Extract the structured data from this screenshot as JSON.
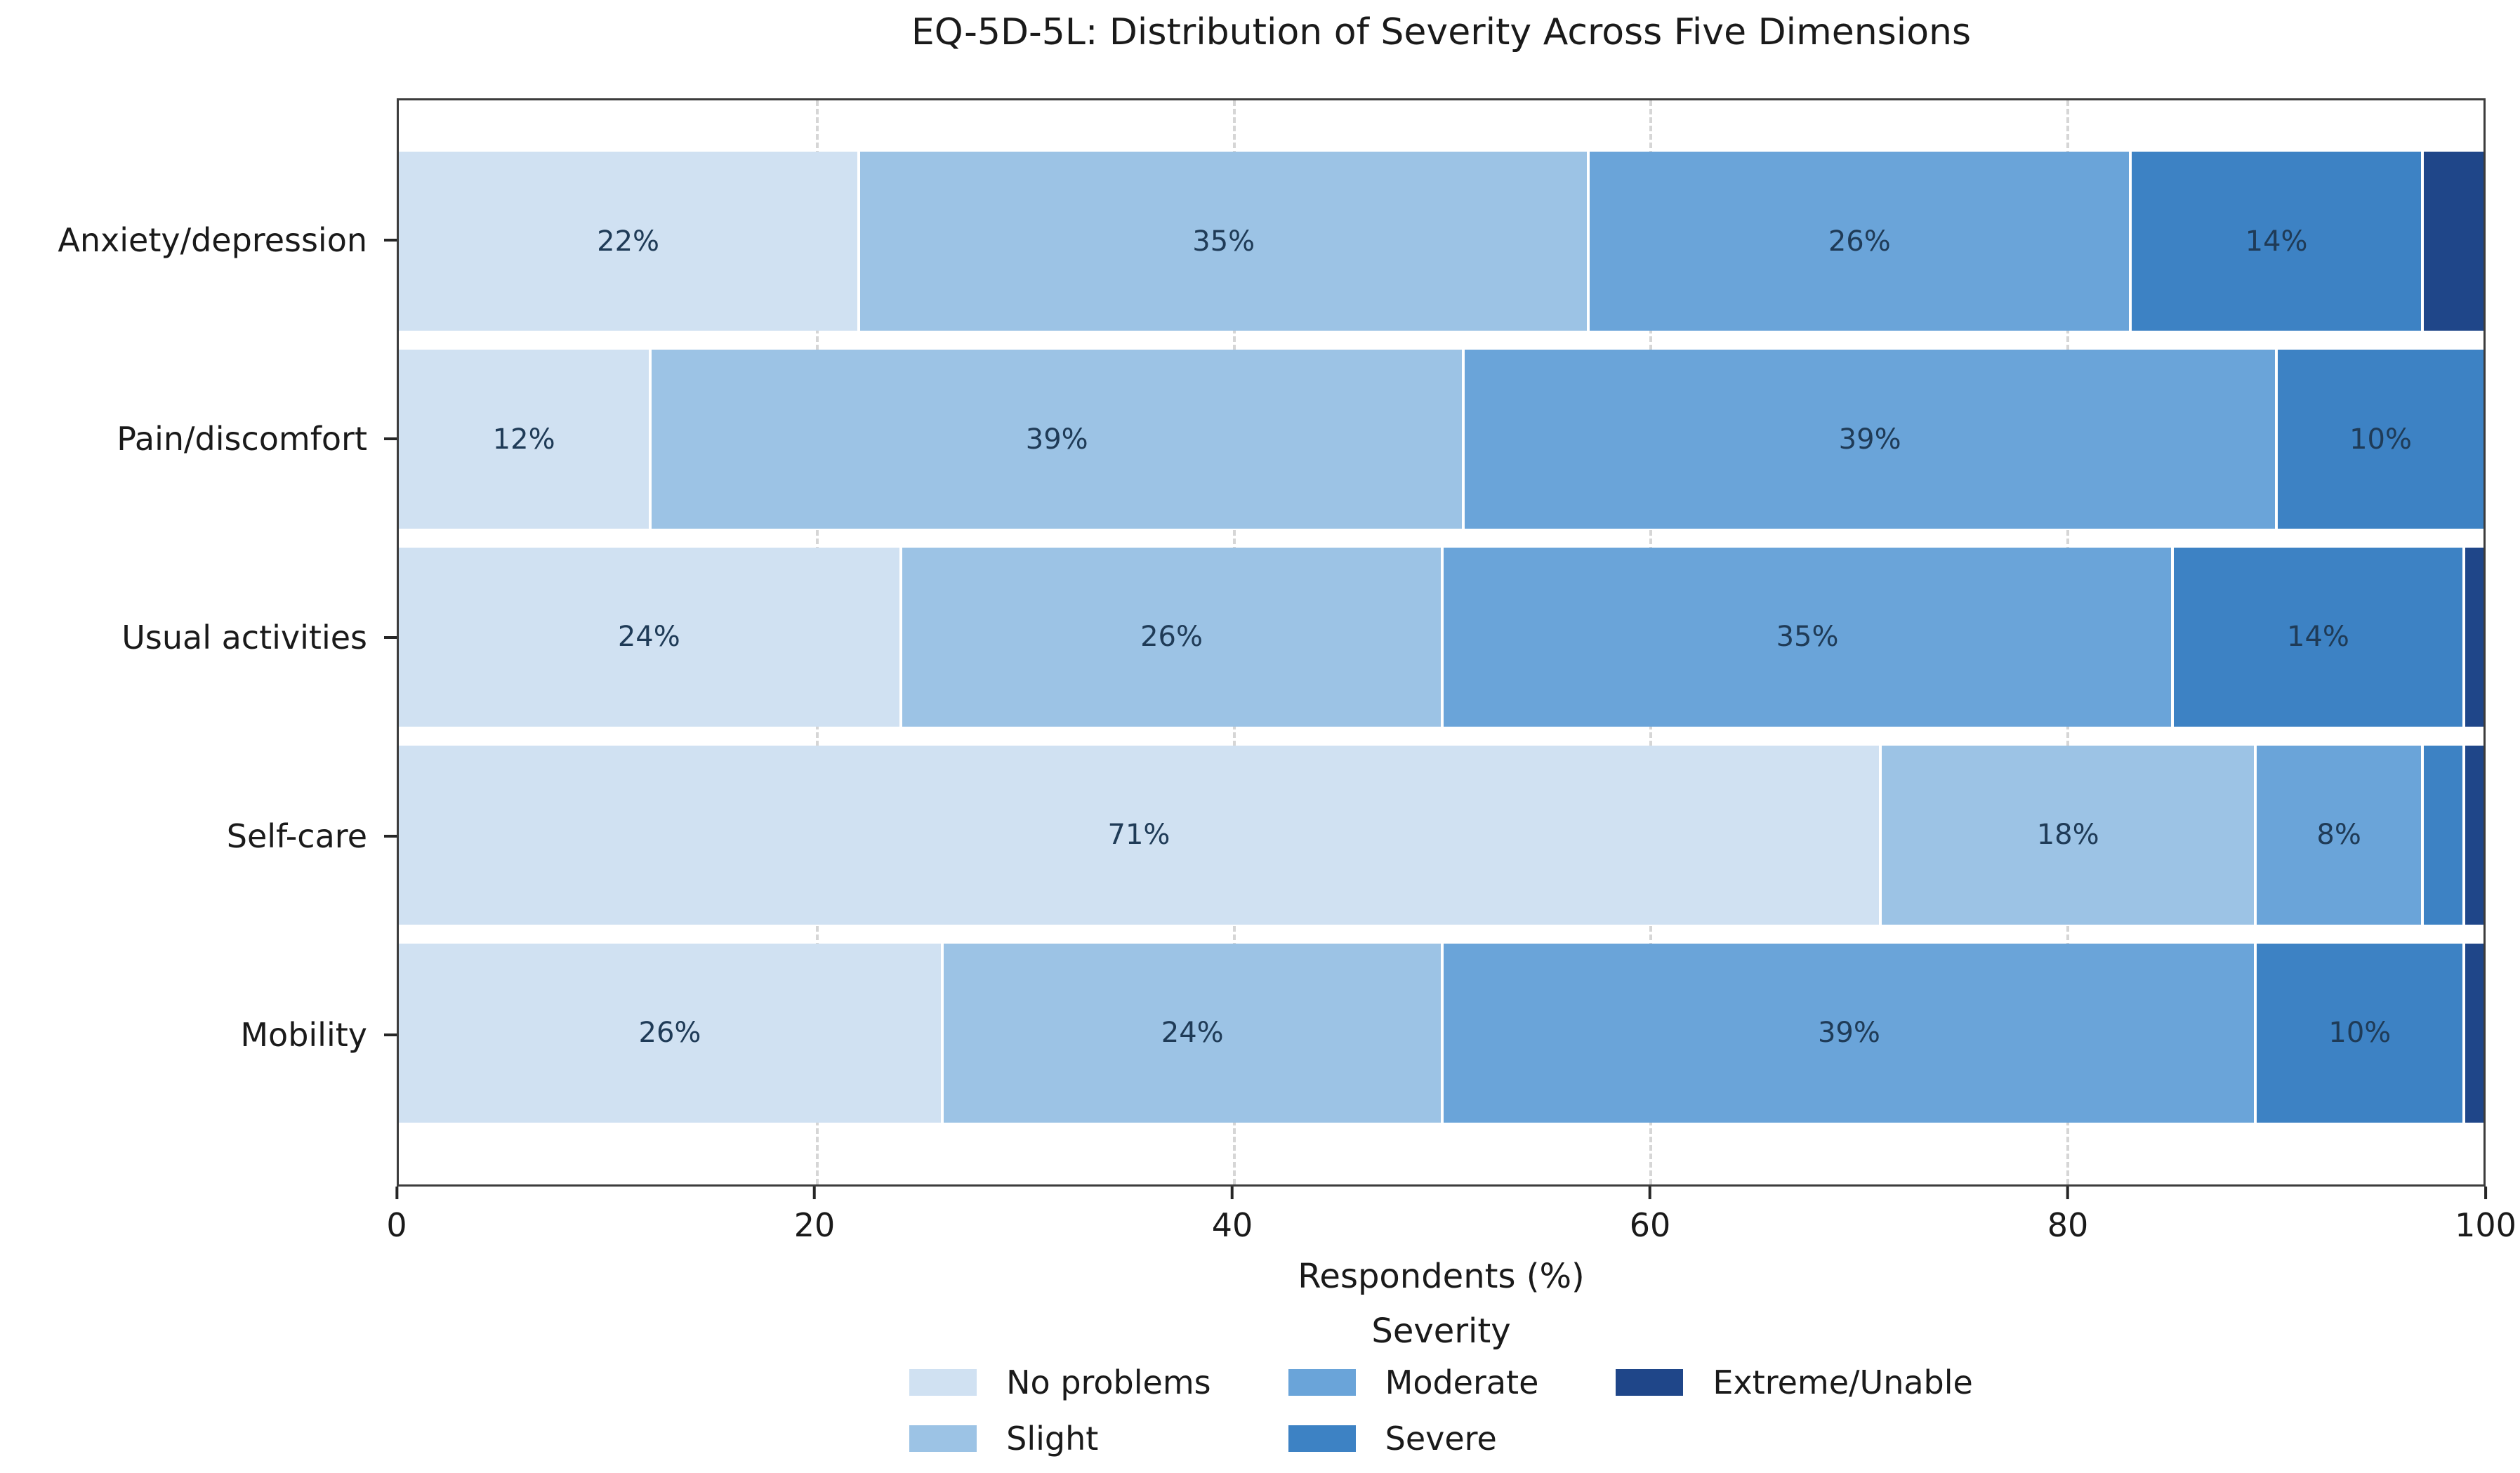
{
  "title": "EQ-5D-5L: Distribution of Severity Across Five Dimensions",
  "xlabel": "Respondents (%)",
  "legend": {
    "title": "Severity",
    "entries": [
      "No problems",
      "Slight",
      "Moderate",
      "Severe",
      "Extreme/Unable"
    ],
    "columns": 3
  },
  "colors": {
    "no_problems": "#d0e1f2",
    "slight": "#9cc3e5",
    "moderate": "#6aa4d9",
    "severe": "#3d82c4",
    "extreme_unable": "#1f4689",
    "segment_label": "#1f3b57",
    "grid": "#d6d6d6",
    "spine": "#3c3c3c"
  },
  "chart_data": {
    "type": "bar",
    "stacked": true,
    "orientation": "horizontal",
    "title": "EQ-5D-5L: Distribution of Severity Across Five Dimensions",
    "xlabel": "Respondents (%)",
    "ylabel": "",
    "xlim": [
      0,
      100
    ],
    "x_ticks": [
      0,
      20,
      40,
      60,
      80,
      100
    ],
    "grid_x": [
      20,
      40,
      60,
      80
    ],
    "grid_style": "dashed",
    "legend_position": "below center, 3 columns, title Severity",
    "categories": [
      "Anxiety/depression",
      "Pain/discomfort",
      "Usual activities",
      "Self-care",
      "Mobility"
    ],
    "series": [
      {
        "name": "No problems",
        "color": "#d0e1f2",
        "values": [
          22,
          12,
          24,
          71,
          26
        ]
      },
      {
        "name": "Slight",
        "color": "#9cc3e5",
        "values": [
          35,
          39,
          26,
          18,
          24
        ]
      },
      {
        "name": "Moderate",
        "color": "#6aa4d9",
        "values": [
          26,
          39,
          35,
          8,
          39
        ]
      },
      {
        "name": "Severe",
        "color": "#3d82c4",
        "values": [
          14,
          10,
          14,
          2,
          10
        ]
      },
      {
        "name": "Extreme/Unable",
        "color": "#1f4689",
        "values": [
          3,
          0,
          1,
          1,
          1
        ]
      }
    ],
    "data_label_format": "{value}%",
    "data_label_min_value": 5
  }
}
